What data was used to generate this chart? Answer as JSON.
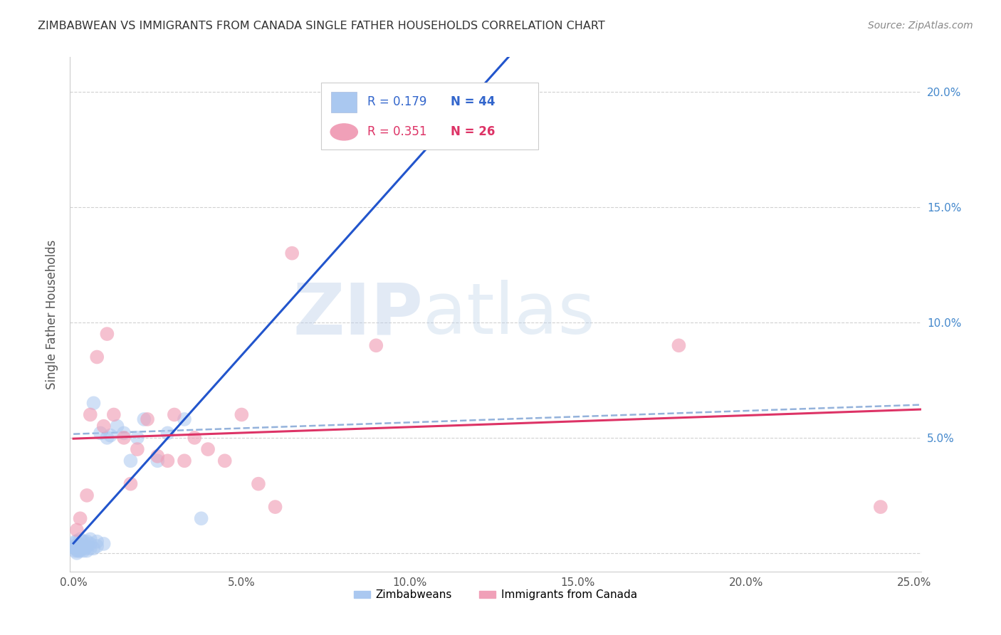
{
  "title": "ZIMBABWEAN VS IMMIGRANTS FROM CANADA SINGLE FATHER HOUSEHOLDS CORRELATION CHART",
  "source": "Source: ZipAtlas.com",
  "ylabel": "Single Father Households",
  "xlim": [
    -0.001,
    0.252
  ],
  "ylim": [
    -0.008,
    0.215
  ],
  "xticks": [
    0.0,
    0.05,
    0.1,
    0.15,
    0.2,
    0.25
  ],
  "xticklabels": [
    "0.0%",
    "5.0%",
    "10.0%",
    "15.0%",
    "20.0%",
    "25.0%"
  ],
  "yticks_right": [
    0.05,
    0.1,
    0.15,
    0.2
  ],
  "yticklabels_right": [
    "5.0%",
    "10.0%",
    "15.0%",
    "20.0%"
  ],
  "zimbabwean_x": [
    0.0003,
    0.0004,
    0.0005,
    0.0006,
    0.0007,
    0.0008,
    0.001,
    0.001,
    0.001,
    0.0012,
    0.0013,
    0.0015,
    0.0015,
    0.002,
    0.002,
    0.002,
    0.0025,
    0.003,
    0.003,
    0.003,
    0.0035,
    0.004,
    0.004,
    0.004,
    0.005,
    0.005,
    0.005,
    0.006,
    0.006,
    0.007,
    0.007,
    0.008,
    0.009,
    0.01,
    0.011,
    0.013,
    0.015,
    0.017,
    0.019,
    0.021,
    0.025,
    0.028,
    0.033,
    0.038
  ],
  "zimbabwean_y": [
    0.003,
    0.001,
    0.002,
    0.005,
    0.002,
    0.003,
    0.0,
    0.002,
    0.005,
    0.001,
    0.003,
    0.001,
    0.004,
    0.001,
    0.003,
    0.006,
    0.002,
    0.001,
    0.003,
    0.005,
    0.002,
    0.001,
    0.003,
    0.005,
    0.002,
    0.004,
    0.006,
    0.002,
    0.065,
    0.003,
    0.005,
    0.052,
    0.004,
    0.05,
    0.051,
    0.055,
    0.052,
    0.04,
    0.05,
    0.058,
    0.04,
    0.052,
    0.058,
    0.015
  ],
  "canada_x": [
    0.001,
    0.002,
    0.004,
    0.005,
    0.007,
    0.009,
    0.01,
    0.012,
    0.015,
    0.017,
    0.019,
    0.022,
    0.025,
    0.028,
    0.03,
    0.033,
    0.036,
    0.04,
    0.045,
    0.05,
    0.055,
    0.06,
    0.065,
    0.09,
    0.18,
    0.24
  ],
  "canada_y": [
    0.01,
    0.015,
    0.025,
    0.06,
    0.085,
    0.055,
    0.095,
    0.06,
    0.05,
    0.03,
    0.045,
    0.058,
    0.042,
    0.04,
    0.06,
    0.04,
    0.05,
    0.045,
    0.04,
    0.06,
    0.03,
    0.02,
    0.13,
    0.09,
    0.09,
    0.02
  ],
  "zimbabwean_color": "#aac8f0",
  "canada_color": "#f0a0b8",
  "zim_line_color": "#2255cc",
  "can_line_color": "#dd3366",
  "dash_line_color": "#88aad8",
  "zimbabwean_R": "0.179",
  "zimbabwean_N": "44",
  "canada_R": "0.351",
  "canada_N": "26",
  "legend_label1": "Zimbabweans",
  "legend_label2": "Immigrants from Canada",
  "watermark_zip": "ZIP",
  "watermark_atlas": "atlas",
  "bg_color": "#ffffff",
  "grid_color": "#cccccc",
  "title_fontsize": 11.5,
  "source_fontsize": 10,
  "marker_size": 200,
  "zim_alpha": 0.55,
  "can_alpha": 0.65
}
